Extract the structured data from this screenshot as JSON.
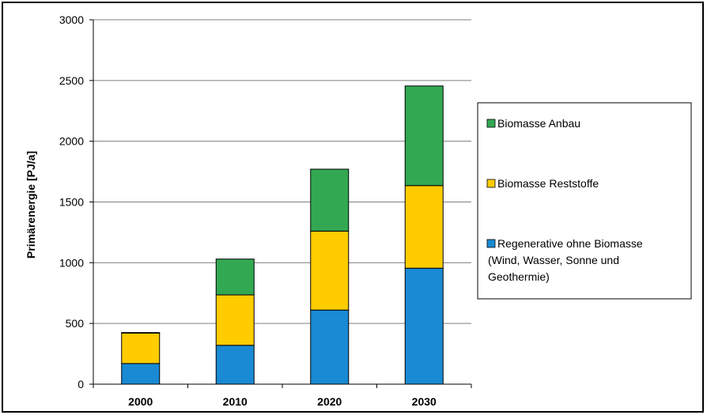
{
  "chart_data": {
    "type": "bar",
    "stacked": true,
    "categories": [
      "2000",
      "2010",
      "2020",
      "2030"
    ],
    "series": [
      {
        "name": "Regenerative ohne Biomasse (Wind, Wasser, Sonne und Geothermie)",
        "name_lines": [
          "Regenerative ohne Biomasse",
          "(Wind, Wasser, Sonne und",
          "Geothermie)"
        ],
        "color": "#1a8ad4",
        "values": [
          170,
          320,
          610,
          955
        ]
      },
      {
        "name": "Biomasse Reststoffe",
        "name_lines": [
          "Biomasse Reststoffe"
        ],
        "color": "#ffcc00",
        "values": [
          250,
          415,
          650,
          680
        ]
      },
      {
        "name": "Biomasse Anbau",
        "name_lines": [
          "Biomasse Anbau"
        ],
        "color": "#33a852",
        "values": [
          5,
          295,
          510,
          820
        ]
      }
    ],
    "title": "",
    "xlabel": "",
    "ylabel": "Primärenergie [PJ/a]",
    "ylim": [
      0,
      3000
    ],
    "yticks": [
      0,
      500,
      1000,
      1500,
      2000,
      2500,
      3000
    ],
    "grid": true,
    "legend": "right"
  }
}
